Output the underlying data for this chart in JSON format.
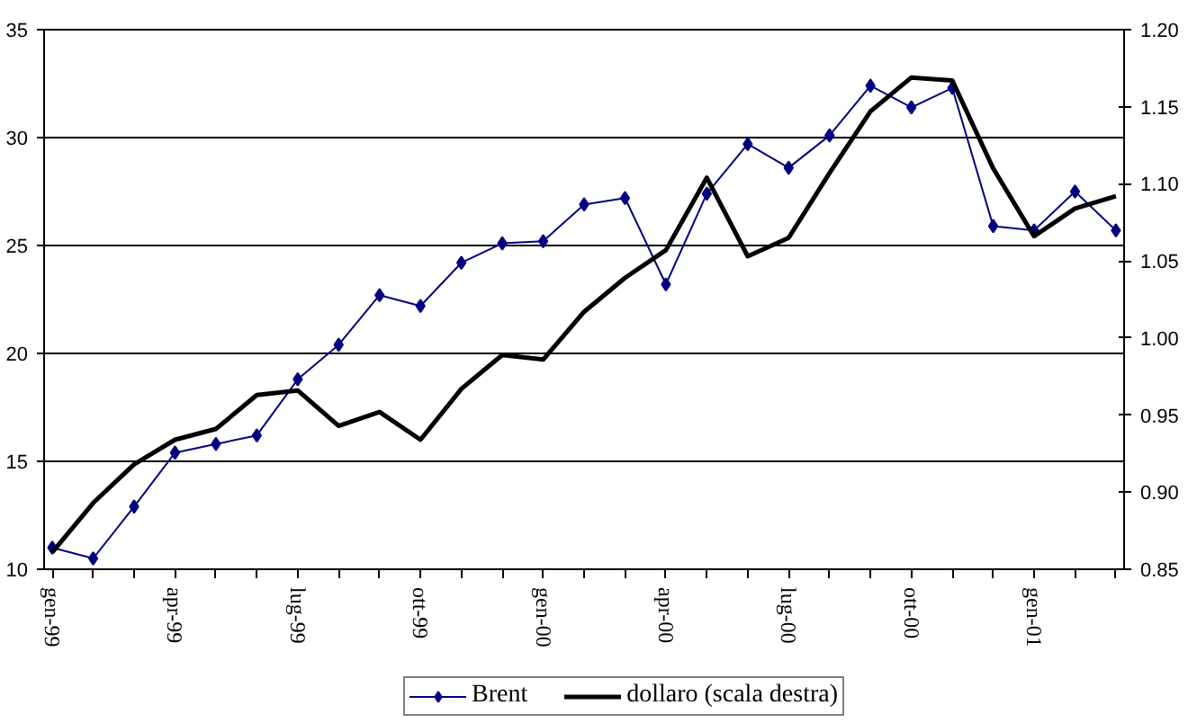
{
  "chart_data": {
    "type": "line",
    "categories": [
      "gen-99",
      null,
      null,
      "apr-99",
      null,
      null,
      "lug-99",
      null,
      null,
      "ott-99",
      null,
      null,
      "gen-00",
      null,
      null,
      "apr-00",
      null,
      null,
      "lug-00",
      null,
      null,
      "ott-00",
      null,
      null,
      "gen-01",
      null,
      null
    ],
    "series": [
      {
        "name": "Brent",
        "color": "#000080",
        "marker": "diamond",
        "values": [
          11.0,
          10.5,
          12.9,
          15.4,
          15.8,
          16.2,
          18.8,
          20.4,
          22.7,
          22.2,
          24.2,
          25.1,
          25.2,
          26.9,
          27.2,
          23.2,
          27.4,
          29.7,
          28.6,
          30.1,
          32.4,
          31.4,
          32.3,
          25.9,
          25.7,
          27.5,
          25.7
        ]
      },
      {
        "name": "dollaro (scala destra)",
        "color": "#000000",
        "marker": "none",
        "axis": "y2",
        "values": [
          0.861,
          0.893,
          0.918,
          0.934,
          0.941,
          0.963,
          0.966,
          0.943,
          0.952,
          0.934,
          0.967,
          0.989,
          0.986,
          1.017,
          1.039,
          1.057,
          1.104,
          1.053,
          1.065,
          1.107,
          1.147,
          1.169,
          1.167,
          1.11,
          1.066,
          1.084,
          1.092
        ]
      }
    ],
    "ylim": [
      10,
      35
    ],
    "yticks": [
      10,
      15,
      20,
      25,
      30,
      35
    ],
    "y2lim": [
      0.85,
      1.2
    ],
    "y2ticks": [
      {
        "value": 0.85,
        "label": "0.85"
      },
      {
        "value": 0.9,
        "label": "0.90"
      },
      {
        "value": 0.95,
        "label": "0.95"
      },
      {
        "value": 1.0,
        "label": "1.00"
      },
      {
        "value": 1.05,
        "label": "1.05"
      },
      {
        "value": 1.1,
        "label": "1.10"
      },
      {
        "value": 1.15,
        "label": "1.15"
      },
      {
        "value": 1.2,
        "label": "1.20"
      }
    ],
    "grid": "y",
    "legend": "bottom"
  }
}
